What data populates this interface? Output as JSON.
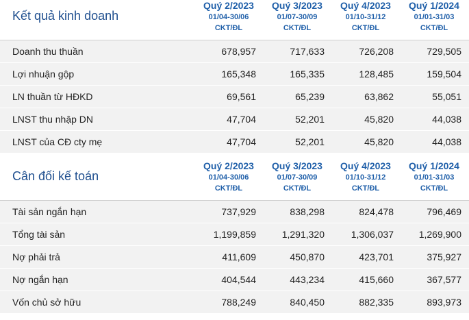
{
  "kqkd": {
    "title": "Kết quả kinh doanh",
    "quarters": [
      {
        "q": "Quý 2/2023",
        "range": "01/04-30/06",
        "type": "CKT/ĐL"
      },
      {
        "q": "Quý 3/2023",
        "range": "01/07-30/09",
        "type": "CKT/ĐL"
      },
      {
        "q": "Quý 4/2023",
        "range": "01/10-31/12",
        "type": "CKT/ĐL"
      },
      {
        "q": "Quý 1/2024",
        "range": "01/01-31/03",
        "type": "CKT/ĐL"
      }
    ],
    "rows": [
      {
        "label": "Doanh thu thuần",
        "values": [
          "678,957",
          "717,633",
          "726,208",
          "729,505"
        ]
      },
      {
        "label": "Lợi nhuận gộp",
        "values": [
          "165,348",
          "165,335",
          "128,485",
          "159,504"
        ]
      },
      {
        "label": "LN thuần từ HĐKD",
        "values": [
          "69,561",
          "65,239",
          "63,862",
          "55,051"
        ]
      },
      {
        "label": "LNST thu nhập DN",
        "values": [
          "47,704",
          "52,201",
          "45,820",
          "44,038"
        ]
      },
      {
        "label": "LNST của CĐ cty mẹ",
        "values": [
          "47,704",
          "52,201",
          "45,820",
          "44,038"
        ]
      }
    ]
  },
  "cdkt": {
    "title": "Cân đối kế toán",
    "quarters": [
      {
        "q": "Quý 2/2023",
        "range": "01/04-30/06",
        "type": "CKT/ĐL"
      },
      {
        "q": "Quý 3/2023",
        "range": "01/07-30/09",
        "type": "CKT/ĐL"
      },
      {
        "q": "Quý 4/2023",
        "range": "01/10-31/12",
        "type": "CKT/ĐL"
      },
      {
        "q": "Quý 1/2024",
        "range": "01/01-31/03",
        "type": "CKT/ĐL"
      }
    ],
    "rows": [
      {
        "label": "Tài sản ngắn hạn",
        "values": [
          "737,929",
          "838,298",
          "824,478",
          "796,469"
        ]
      },
      {
        "label": "Tổng tài sản",
        "values": [
          "1,199,859",
          "1,291,320",
          "1,306,037",
          "1,269,900"
        ]
      },
      {
        "label": "Nợ phải trả",
        "values": [
          "411,609",
          "450,870",
          "423,701",
          "375,927"
        ]
      },
      {
        "label": "Nợ ngắn hạn",
        "values": [
          "404,544",
          "443,234",
          "415,660",
          "367,577"
        ]
      },
      {
        "label": "Vốn chủ sở hữu",
        "values": [
          "788,249",
          "840,450",
          "882,335",
          "893,973"
        ]
      }
    ]
  }
}
